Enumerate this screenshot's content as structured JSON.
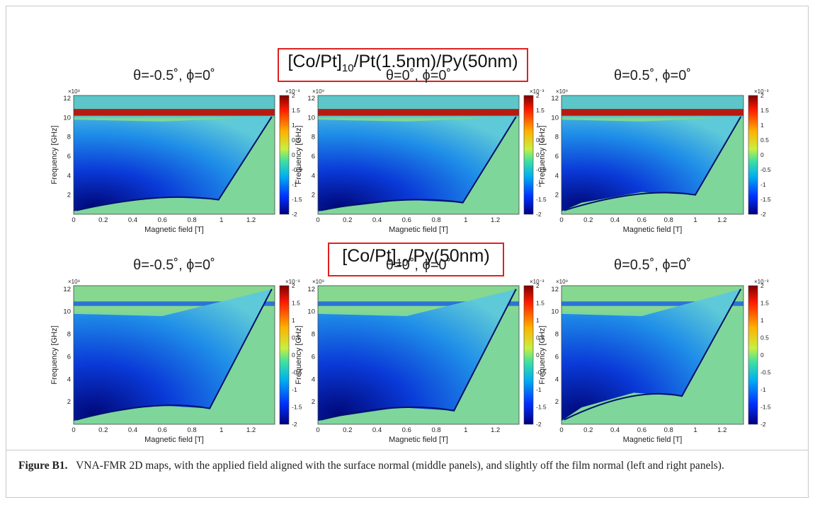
{
  "headings": [
    {
      "prefix": "[Co/Pt]",
      "subscript": "10",
      "suffix": "/Pt(1.5nm)/Py(50nm)"
    },
    {
      "prefix": "[Co/Pt]",
      "subscript": "10",
      "suffix": "/Py(50nm)"
    }
  ],
  "panels": [
    {
      "title": "θ=-0.5˚, ϕ=0˚",
      "xlabel": "Magnetic field [T]",
      "ylabel": "Frequency [GHz]",
      "y_multiplier": "×10⁹",
      "xticks": [
        "0",
        "0.2",
        "0.4",
        "0.6",
        "0.8",
        "1",
        "1.2"
      ],
      "yticks": [
        "12",
        "10",
        "8",
        "6",
        "4",
        "2"
      ],
      "colorbar_multiplier": "×10⁻³",
      "colorbar_ticks": [
        "2",
        "1.5",
        "1",
        "0.5",
        "0",
        "-0.5",
        "-1",
        "-1.5",
        "-2"
      ]
    },
    {
      "title": "θ=0˚, ϕ=0˚",
      "xlabel": "Magnetic field [T]",
      "ylabel": "Frequency [GHz]",
      "y_multiplier": "×10⁹",
      "xticks": [
        "0",
        "0.2",
        "0.4",
        "0.6",
        "0.8",
        "1",
        "1.2"
      ],
      "yticks": [
        "12",
        "10",
        "8",
        "6",
        "4",
        "2"
      ],
      "colorbar_multiplier": "×10⁻³",
      "colorbar_ticks": [
        "2",
        "1.5",
        "1",
        "0.5",
        "0",
        "-0.5",
        "-1",
        "-1.5",
        "-2"
      ]
    },
    {
      "title": "θ=0.5˚, ϕ=0˚",
      "xlabel": "Magnetic field [T]",
      "ylabel": "Frequency [GHz]",
      "y_multiplier": "×10⁹",
      "xticks": [
        "0",
        "0.2",
        "0.4",
        "0.6",
        "0.8",
        "1",
        "1.2"
      ],
      "yticks": [
        "12",
        "10",
        "8",
        "6",
        "4",
        "2"
      ],
      "colorbar_multiplier": "×10⁻³",
      "colorbar_ticks": [
        "2",
        "1.5",
        "1",
        "0.5",
        "0",
        "-0.5",
        "-1",
        "-1.5",
        "-2"
      ]
    },
    {
      "title": "θ=-0.5˚, ϕ=0˚",
      "xlabel": "Magnetic field [T]",
      "ylabel": "Frequency [GHz]",
      "y_multiplier": "×10⁹",
      "xticks": [
        "0",
        "0.2",
        "0.4",
        "0.6",
        "0.8",
        "1",
        "1.2"
      ],
      "yticks": [
        "12",
        "10",
        "8",
        "6",
        "4",
        "2"
      ],
      "colorbar_multiplier": "×10⁻³",
      "colorbar_ticks": [
        "2",
        "1.5",
        "1",
        "0.5",
        "0",
        "-0.5",
        "-1",
        "-1.5",
        "-2"
      ]
    },
    {
      "title": "θ=0˚, ϕ=0˚",
      "xlabel": "Magnetic field [T]",
      "ylabel": "Frequency [GHz]",
      "y_multiplier": "×10⁹",
      "xticks": [
        "0",
        "0.2",
        "0.4",
        "0.6",
        "0.8",
        "1",
        "1.2"
      ],
      "yticks": [
        "12",
        "10",
        "8",
        "6",
        "4",
        "2"
      ],
      "colorbar_multiplier": "×10⁻³",
      "colorbar_ticks": [
        "2",
        "1.5",
        "1",
        "0.5",
        "0",
        "-0.5",
        "-1",
        "-1.5",
        "-2"
      ]
    },
    {
      "title": "θ=0.5˚, ϕ=0˚",
      "xlabel": "Magnetic field [T]",
      "ylabel": "Frequency [GHz]",
      "y_multiplier": "×10⁹",
      "xticks": [
        "0",
        "0.2",
        "0.4",
        "0.6",
        "0.8",
        "1",
        "1.2"
      ],
      "yticks": [
        "12",
        "10",
        "8",
        "6",
        "4",
        "2"
      ],
      "colorbar_multiplier": "×10⁻³",
      "colorbar_ticks": [
        "2",
        "1.5",
        "1",
        "0.5",
        "0",
        "-0.5",
        "-1",
        "-1.5",
        "-2"
      ]
    }
  ],
  "caption": {
    "label": "Figure B1.",
    "text": "VNA-FMR 2D maps, with the applied field aligned with the surface normal (middle panels), and slightly off the film normal (left and right panels)."
  }
}
